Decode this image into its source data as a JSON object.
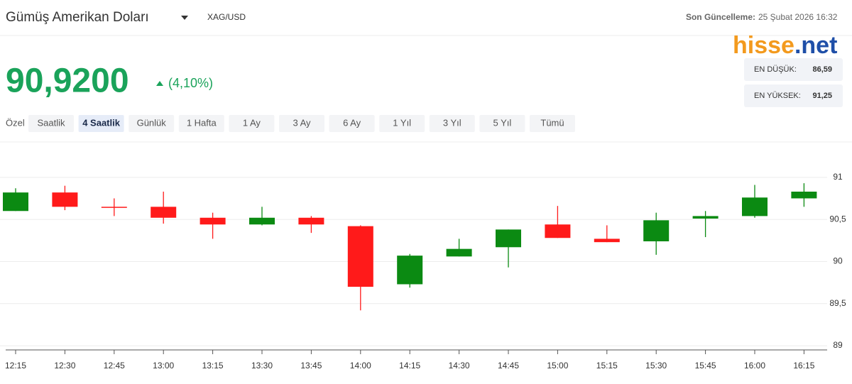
{
  "header": {
    "title": "Gümüş Amerikan Doları",
    "symbol": "XAG/USD",
    "updated_label": "Son Güncelleme:",
    "updated_value": "25 Şubat 2026 16:32",
    "logo_a": "hisse",
    "logo_b": ".net",
    "price": "90,9200",
    "change": "(4,10%)",
    "low_label": "EN DÜŞÜK:",
    "low_value": "86,59",
    "high_label": "EN YÜKSEK:",
    "high_value": "91,25"
  },
  "ranges": {
    "buttons": [
      "Özel",
      "Saatlik",
      "4 Saatlik",
      "Günlük",
      "1 Hafta",
      "1 Ay",
      "3 Ay",
      "6 Ay",
      "1 Yıl",
      "3 Yıl",
      "5 Yıl",
      "Tümü"
    ],
    "active": "4 Saatlik"
  },
  "chart_data": {
    "type": "candlestick",
    "categories": [
      "12:15",
      "12:30",
      "12:45",
      "13:00",
      "13:15",
      "13:30",
      "13:45",
      "14:00",
      "14:15",
      "14:30",
      "14:45",
      "15:00",
      "15:15",
      "15:30",
      "15:45",
      "16:00",
      "16:15"
    ],
    "open": [
      90.6,
      90.82,
      90.65,
      90.65,
      90.52,
      90.44,
      90.52,
      90.42,
      89.73,
      90.06,
      90.17,
      90.44,
      90.27,
      90.24,
      90.51,
      90.54,
      90.75
    ],
    "high": [
      90.87,
      90.9,
      90.75,
      90.83,
      90.58,
      90.65,
      90.54,
      90.43,
      90.09,
      90.27,
      90.38,
      90.66,
      90.43,
      90.58,
      90.6,
      90.91,
      90.93
    ],
    "low": [
      90.6,
      90.61,
      90.54,
      90.45,
      90.27,
      90.43,
      90.34,
      89.42,
      89.69,
      90.06,
      89.93,
      90.28,
      90.23,
      90.08,
      90.29,
      90.52,
      90.65
    ],
    "close": [
      90.82,
      90.65,
      90.64,
      90.52,
      90.44,
      90.52,
      90.44,
      89.7,
      90.07,
      90.15,
      90.38,
      90.28,
      90.23,
      90.49,
      90.54,
      90.76,
      90.83
    ],
    "up_color": "#0b8a12",
    "down_color": "#ff1a1a",
    "ylim": [
      88.95,
      91.42
    ],
    "yticks": [
      91,
      {
        "value": 90.5,
        "label": "90,5"
      },
      90,
      {
        "value": 89.5,
        "label": "89,5"
      },
      89
    ],
    "grid": true
  }
}
